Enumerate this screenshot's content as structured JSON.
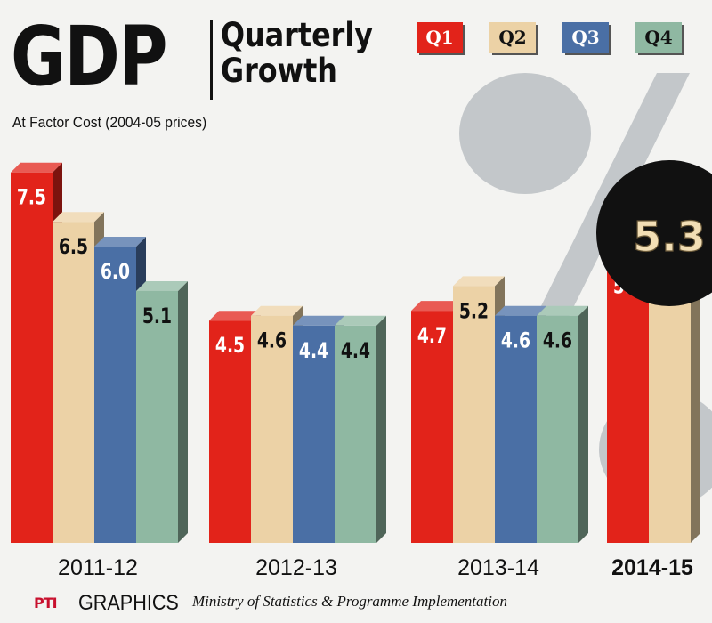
{
  "header": {
    "title": "GDP",
    "subtitle_line1": "Quarterly",
    "subtitle_line2": "Growth",
    "basis": "At Factor Cost (2004-05 prices)"
  },
  "footer": {
    "agency_logo": "PTI",
    "graphics_label": "GRAPHICS",
    "source": "Ministry of Statistics & Programme Implementation"
  },
  "decor": {
    "symbol": "%",
    "highlight_value": "5.3",
    "highlight_color": "#111111",
    "highlight_text_color": "#f2deb5"
  },
  "colors": {
    "Q1": "#e2231a",
    "Q2": "#ecd2a6",
    "Q3": "#4a6fa5",
    "Q4": "#8fb8a2"
  },
  "chart_data": {
    "type": "bar",
    "title": "GDP Quarterly Growth",
    "subtitle": "At Factor Cost (2004-05 prices)",
    "legend_position": "top-right",
    "grid": false,
    "ylim": [
      0,
      8
    ],
    "categories": [
      "2011-12",
      "2012-13",
      "2013-14",
      "2014-15"
    ],
    "series": [
      {
        "name": "Q1",
        "values": [
          7.5,
          4.5,
          4.7,
          5.7
        ]
      },
      {
        "name": "Q2",
        "values": [
          6.5,
          4.6,
          5.2,
          5.3
        ]
      },
      {
        "name": "Q3",
        "values": [
          6.0,
          4.4,
          4.6,
          null
        ]
      },
      {
        "name": "Q4",
        "values": [
          5.1,
          4.4,
          4.6,
          null
        ]
      }
    ],
    "bar_labels": {
      "Q1": [
        "7.5",
        "4.5",
        "4.7",
        "5.7"
      ],
      "Q2": [
        "6.5",
        "4.6",
        "5.2",
        ""
      ],
      "Q3": [
        "6.0",
        "4.4",
        "4.6",
        ""
      ],
      "Q4": [
        "5.1",
        "4.4",
        "4.6",
        ""
      ]
    },
    "emphasized_category": "2014-15"
  }
}
